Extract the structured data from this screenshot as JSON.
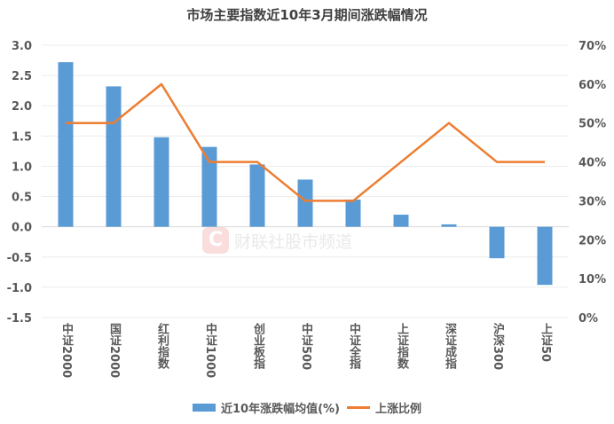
{
  "chart_data": {
    "type": "bar",
    "title": "市场主要指数近10年3月期间涨跌幅情况",
    "categories": [
      "中证2000",
      "国证2000",
      "红利指数",
      "中证1000",
      "创业板指",
      "中证500",
      "中证全指",
      "上证指数",
      "深证成指",
      "沪深300",
      "上证50"
    ],
    "series": [
      {
        "name": "近10年涨跌幅均值(%)",
        "type": "bar",
        "axis": "left",
        "color": "#5b9bd5",
        "values": [
          2.72,
          2.32,
          1.48,
          1.32,
          1.03,
          0.78,
          0.45,
          0.2,
          0.04,
          -0.52,
          -0.96
        ]
      },
      {
        "name": "上涨比例",
        "type": "line",
        "axis": "right",
        "color": "#ed7d31",
        "values": [
          50,
          50,
          60,
          40,
          40,
          30,
          30,
          40,
          50,
          40,
          40
        ]
      }
    ],
    "ylim": [
      -1.5,
      3.0
    ],
    "yticks": [
      "3.0",
      "2.5",
      "2.0",
      "1.5",
      "1.0",
      "0.5",
      "0.0",
      "-0.5",
      "-1.0",
      "-1.5"
    ],
    "y2lim": [
      0,
      70
    ],
    "y2ticks": [
      "70%",
      "60%",
      "50%",
      "40%",
      "30%",
      "20%",
      "10%",
      "0%"
    ],
    "grid": true,
    "legend": "bottom"
  },
  "watermark": {
    "logo": "C",
    "text": "财联社股市频道"
  }
}
